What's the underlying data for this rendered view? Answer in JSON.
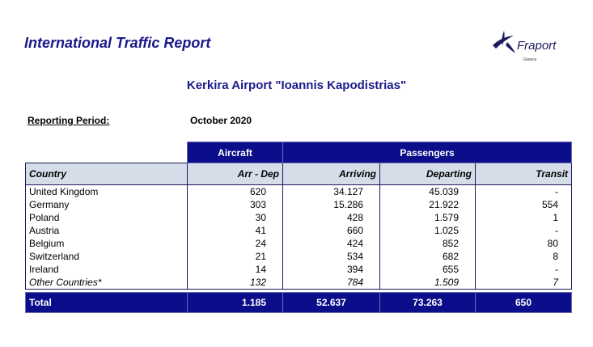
{
  "report": {
    "title": "International Traffic Report",
    "airport": "Kerkira Airport \"Ioannis Kapodistrias\"",
    "period_label": "Reporting Period:",
    "period_value": "October 2020"
  },
  "logo": {
    "brand": "Fraport",
    "sub": "Greece"
  },
  "table": {
    "group_headers": {
      "aircraft": "Aircraft",
      "passengers": "Passengers"
    },
    "columns": {
      "country": "Country",
      "arr_dep": "Arr - Dep",
      "arriving": "Arriving",
      "departing": "Departing",
      "transit": "Transit"
    },
    "rows": [
      {
        "country": "United Kingdom",
        "arr_dep": "620",
        "arriving": "34.127",
        "departing": "45.039",
        "transit": "-"
      },
      {
        "country": "Germany",
        "arr_dep": "303",
        "arriving": "15.286",
        "departing": "21.922",
        "transit": "554"
      },
      {
        "country": "Poland",
        "arr_dep": "30",
        "arriving": "428",
        "departing": "1.579",
        "transit": "1"
      },
      {
        "country": "Austria",
        "arr_dep": "41",
        "arriving": "660",
        "departing": "1.025",
        "transit": "-"
      },
      {
        "country": "Belgium",
        "arr_dep": "24",
        "arriving": "424",
        "departing": "852",
        "transit": "80"
      },
      {
        "country": "Switzerland",
        "arr_dep": "21",
        "arriving": "534",
        "departing": "682",
        "transit": "8"
      },
      {
        "country": "Ireland",
        "arr_dep": "14",
        "arriving": "394",
        "departing": "655",
        "transit": "-"
      },
      {
        "country": "Other Countries*",
        "arr_dep": "132",
        "arriving": "784",
        "departing": "1.509",
        "transit": "7"
      }
    ],
    "total": {
      "label": "Total",
      "arr_dep": "1.185",
      "arriving": "52.637",
      "departing": "73.263",
      "transit": "650"
    }
  },
  "colors": {
    "header_blue": "#0b0d8a",
    "title_blue": "#1a1a8c",
    "column_header_bg": "#d5dde8"
  }
}
